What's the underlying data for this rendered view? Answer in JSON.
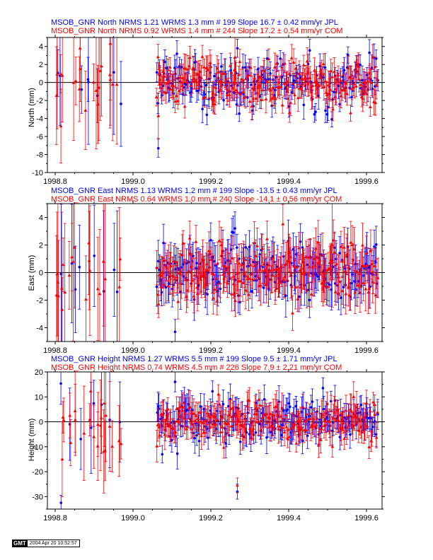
{
  "colors": {
    "jpl": "#0000ff",
    "com": "#ff0000",
    "axis": "#000000"
  },
  "chart_data": [
    {
      "type": "scatter",
      "title_lines": [
        {
          "text": "MSOB_GNR North NRMS 1.21 WRMS  1.3 mm # 199 Slope   16.7 ±  0.42 mm/yr JPL",
          "color": "#0000ff"
        },
        {
          "text": "MSOB_GNR North NRMS 0.92 WRMS  1.4 mm # 244 Slope   17.2 ±  0.54 mm/yr COM",
          "color": "#ff0000"
        }
      ],
      "ylabel": "North (mm)",
      "xlim": [
        1998.78,
        1999.64
      ],
      "ylim": [
        -10,
        5
      ],
      "xticks": [
        1998.8,
        1999.0,
        1999.2,
        1999.4,
        1999.6
      ],
      "xtick_labels": [
        "1998.8",
        "1999.0",
        "1999.2",
        "1999.4",
        "1999.6"
      ],
      "yticks": [
        -10,
        -8,
        -6,
        -4,
        -2,
        0,
        2,
        4
      ],
      "series": [
        {
          "name": "JPL",
          "color": "#0000ff",
          "count": 199,
          "nrms": 1.21,
          "wrms_mm": 1.3,
          "slope": 16.7,
          "slope_sigma": 0.42,
          "marker": "circle"
        },
        {
          "name": "COM",
          "color": "#ff0000",
          "count": 244,
          "nrms": 0.92,
          "wrms_mm": 1.4,
          "slope": 17.2,
          "slope_sigma": 0.54,
          "marker": "triangle"
        }
      ],
      "residuals": {
        "scatter_sd": 1.3,
        "sparse_period": {
          "x": [
            1998.8,
            1998.97
          ],
          "sigma_range": [
            2,
            7
          ]
        },
        "dense_period": {
          "x": [
            1999.06,
            1999.63
          ],
          "sigma_range": [
            0.8,
            1.6
          ]
        },
        "outliers": [
          {
            "series": "JPL",
            "x": 1999.065,
            "y": -7.3,
            "sigma": 1.0
          },
          {
            "series": "COM",
            "x": 1999.065,
            "y": -3.7,
            "sigma": 2.5
          },
          {
            "series": "COM",
            "x": 1999.262,
            "y": 2.8,
            "sigma": 4.5
          },
          {
            "series": "JPL",
            "x": 1999.268,
            "y": 3.8,
            "sigma": 1.0
          }
        ]
      },
      "grid": false
    },
    {
      "type": "scatter",
      "title_lines": [
        {
          "text": "MSOB_GNR East NRMS 1.13 WRMS  1.2 mm # 199 Slope  -13.5 ±  0.43 mm/yr JPL",
          "color": "#0000ff"
        },
        {
          "text": "MSOB_GNR East NRMS 0.64 WRMS  1.0 mm # 240 Slope  -14.1 ±  0.56 mm/yr COM",
          "color": "#ff0000"
        }
      ],
      "ylabel": "East (mm)",
      "xlim": [
        1998.78,
        1999.64
      ],
      "ylim": [
        -5,
        5
      ],
      "xticks": [
        1998.8,
        1999.0,
        1999.2,
        1999.4,
        1999.6
      ],
      "xtick_labels": [
        "1998.8",
        "1999.0",
        "1999.2",
        "1999.4",
        "1999.6"
      ],
      "yticks": [
        -4,
        -2,
        0,
        2,
        4
      ],
      "series": [
        {
          "name": "JPL",
          "color": "#0000ff",
          "count": 199,
          "nrms": 1.13,
          "wrms_mm": 1.2,
          "slope": -13.5,
          "slope_sigma": 0.43,
          "marker": "circle"
        },
        {
          "name": "COM",
          "color": "#ff0000",
          "count": 240,
          "nrms": 0.64,
          "wrms_mm": 1.0,
          "slope": -14.1,
          "slope_sigma": 0.56,
          "marker": "triangle"
        }
      ],
      "residuals": {
        "scatter_sd": 1.1,
        "sparse_period": {
          "x": [
            1998.8,
            1998.97
          ],
          "sigma_range": [
            1.5,
            6
          ]
        },
        "dense_period": {
          "x": [
            1999.06,
            1999.63
          ],
          "sigma_range": [
            0.9,
            1.6
          ]
        },
        "outliers": [
          {
            "series": "JPL",
            "x": 1999.108,
            "y": -4.3,
            "sigma": 0.9
          },
          {
            "series": "JPL",
            "x": 1999.262,
            "y": 3.2,
            "sigma": 1.2
          },
          {
            "series": "COM",
            "x": 1999.512,
            "y": 2.0,
            "sigma": 4.5
          }
        ]
      },
      "grid": false
    },
    {
      "type": "scatter",
      "title_lines": [
        {
          "text": "MSOB_GNR Height NRMS 1.27 WRMS  5.5 mm # 199 Slope    9.5 ±  1.71 mm/yr JPL",
          "color": "#0000ff"
        },
        {
          "text": "MSOB_GNR Height NRMS 0.74 WRMS  4.5 mm # 226 Slope    7.9 ±  2.21 mm/yr COM",
          "color": "#ff0000"
        }
      ],
      "ylabel": "Height (mm)",
      "xlim": [
        1998.78,
        1999.64
      ],
      "ylim": [
        -35,
        20
      ],
      "xticks": [
        1998.8,
        1999.0,
        1999.2,
        1999.4,
        1999.6
      ],
      "xtick_labels": [
        "1998.8",
        "1999.0",
        "1999.2",
        "1999.4",
        "1999.6"
      ],
      "yticks": [
        -30,
        -20,
        -10,
        0,
        10,
        20
      ],
      "series": [
        {
          "name": "JPL",
          "color": "#0000ff",
          "count": 199,
          "nrms": 1.27,
          "wrms_mm": 5.5,
          "slope": 9.5,
          "slope_sigma": 1.71,
          "marker": "circle"
        },
        {
          "name": "COM",
          "color": "#ff0000",
          "count": 226,
          "nrms": 0.74,
          "wrms_mm": 4.5,
          "slope": 7.9,
          "slope_sigma": 2.21,
          "marker": "triangle"
        }
      ],
      "residuals": {
        "scatter_sd": 4.5,
        "sparse_period": {
          "x": [
            1998.8,
            1998.97
          ],
          "sigma_range": [
            6,
            20
          ]
        },
        "dense_period": {
          "x": [
            1999.06,
            1999.63
          ],
          "sigma_range": [
            3.5,
            6.5
          ]
        },
        "outliers": [
          {
            "series": "JPL",
            "x": 1998.815,
            "y": -32.5,
            "sigma": 3.0
          },
          {
            "series": "COM",
            "x": 1998.818,
            "y": -15.0,
            "sigma": 15.0
          },
          {
            "series": "JPL",
            "x": 1999.268,
            "y": -28.0,
            "sigma": 3.0
          },
          {
            "series": "COM",
            "x": 1999.268,
            "y": -25.5,
            "sigma": 3.0
          },
          {
            "series": "JPL",
            "x": 1999.075,
            "y": -13.0,
            "sigma": 3.5
          },
          {
            "series": "JPL",
            "x": 1999.108,
            "y": 16.0,
            "sigma": 4.0
          }
        ]
      },
      "grid": false
    }
  ],
  "footer": {
    "logo": "GMT",
    "timestamp": "2004 Apr 20 10:52:57"
  }
}
